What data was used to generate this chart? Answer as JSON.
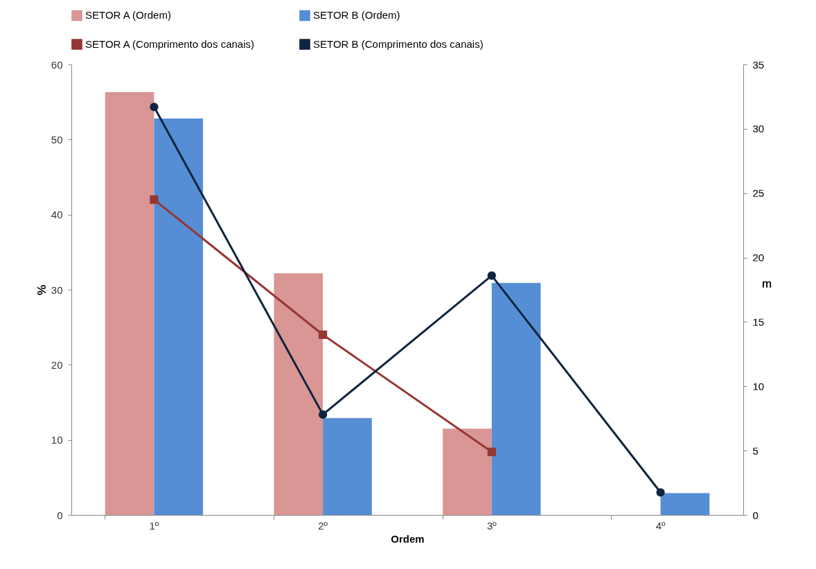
{
  "chart_data": {
    "type": "bar",
    "xlabel": "Ordem",
    "ylabel": "%",
    "y2label": "m",
    "categories": [
      "1º",
      "2º",
      "3º",
      "4º"
    ],
    "series": [
      {
        "name": "SETOR A (Ordem)",
        "color": "#d99694",
        "values": [
          56.3,
          32.2,
          11.5,
          null
        ]
      },
      {
        "name": "SETOR B (Ordem)",
        "color": "#558ed5",
        "values": [
          52.8,
          12.9,
          30.9,
          2.9
        ]
      },
      {
        "name": "SETOR A (Comprimento dos canais)",
        "type": "line",
        "axis": "y2",
        "marker": "square",
        "color": "#953735",
        "values": [
          24.5,
          14.0,
          4.9,
          null
        ]
      },
      {
        "name": "SETOR B (Comprimento dos canais)",
        "type": "line",
        "axis": "y2",
        "marker": "circle",
        "color": "#0f243e",
        "values": [
          31.7,
          7.8,
          18.6,
          1.75
        ]
      }
    ],
    "ylim": [
      0,
      60
    ],
    "yticks": [
      0,
      10,
      20,
      30,
      40,
      50,
      60
    ],
    "y2lim": [
      0,
      35
    ],
    "y2ticks": [
      0,
      5,
      10,
      15,
      20,
      25,
      30,
      35
    ],
    "grid": false,
    "legend": "top"
  }
}
